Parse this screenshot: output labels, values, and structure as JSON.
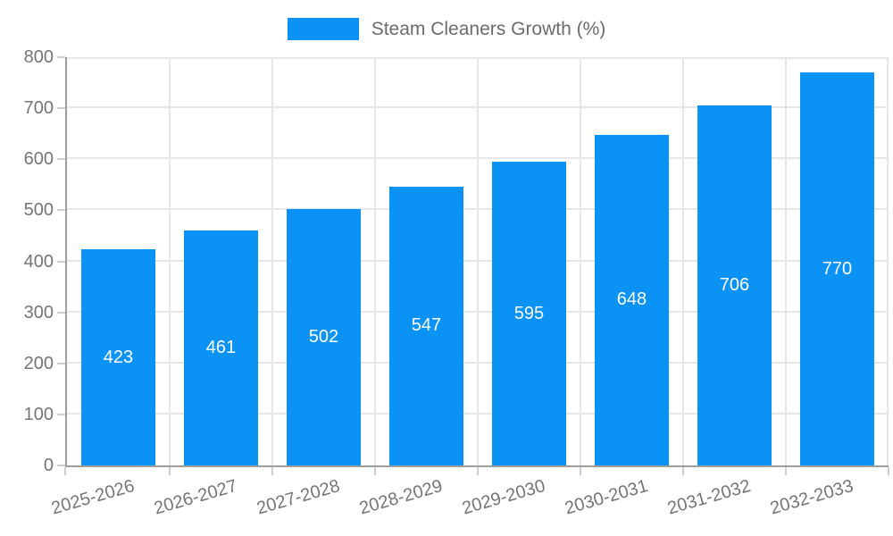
{
  "chart_data": {
    "type": "bar",
    "title": "Steam Cleaners Growth (%)",
    "legend_position": "top",
    "categories": [
      "2025-2026",
      "2026-2027",
      "2027-2028",
      "2028-2029",
      "2029-2030",
      "2030-2031",
      "2031-2032",
      "2032-2033"
    ],
    "values": [
      423,
      461,
      502,
      547,
      595,
      648,
      706,
      770
    ],
    "xlabel": "",
    "ylabel": "",
    "ylim": [
      0,
      800
    ],
    "ytick_step": 100,
    "ytick_labels": [
      "0",
      "100",
      "200",
      "300",
      "400",
      "500",
      "600",
      "700",
      "800"
    ],
    "grid": true,
    "x_label_rotation_deg": -16,
    "bar_color": "#0a92f4",
    "value_label_color": "#ffffff",
    "axis_text_color": "#757575",
    "legend_text_color": "#6b6b6b",
    "grid_color": "#e6e6e6",
    "axis_line_color": "#9e9e9e"
  }
}
